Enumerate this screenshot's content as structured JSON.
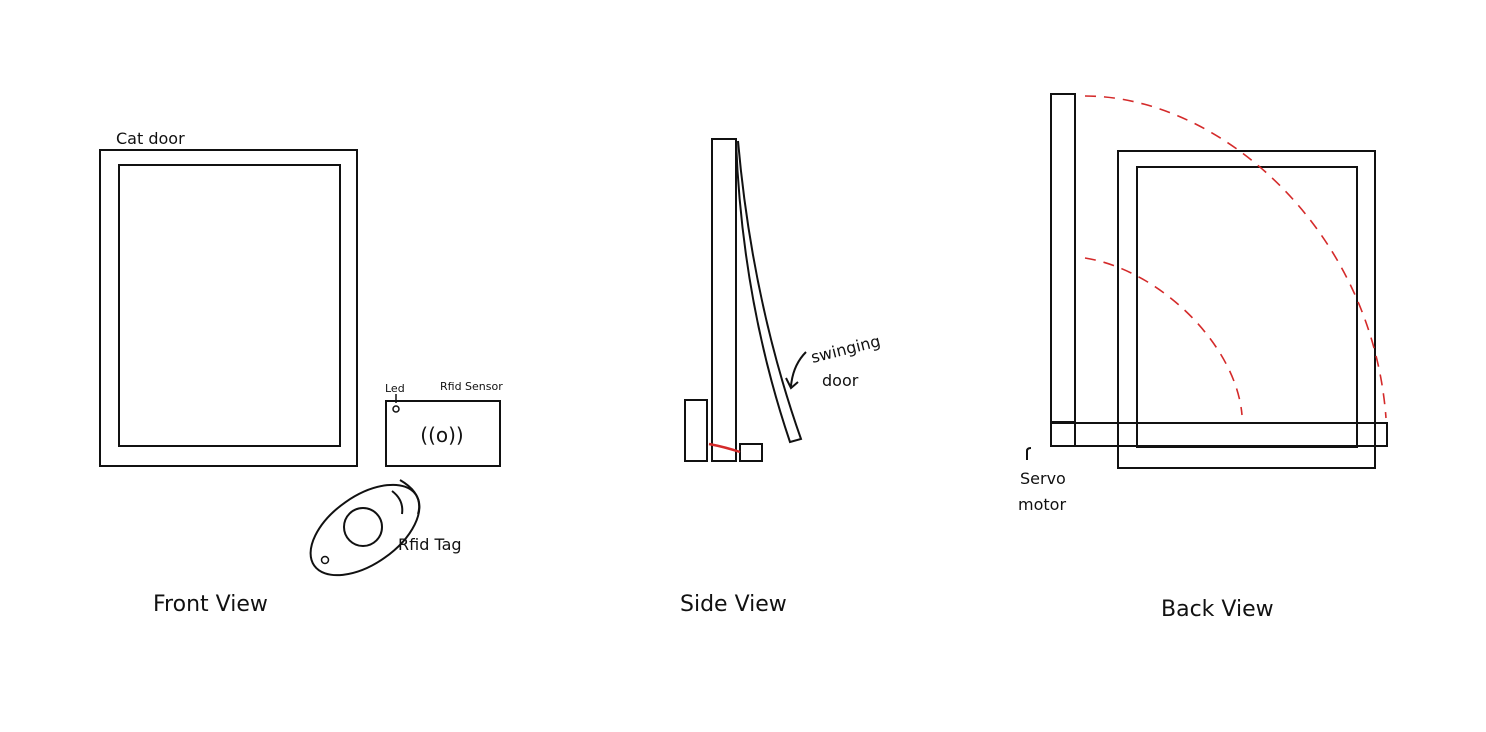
{
  "front_view": {
    "caption": "Front View",
    "cat_door_label": "Cat door",
    "led_label": "Led",
    "rfid_sensor_label": "Rfid Sensor",
    "sensor_symbol": "((o))",
    "rfid_tag_label": "Rfid Tag"
  },
  "side_view": {
    "caption": "Side View",
    "door_label_line1": "swinging",
    "door_label_line2": "door"
  },
  "back_view": {
    "caption": "Back View",
    "servo_label_line1": "Servo",
    "servo_label_line2": "motor"
  },
  "colors": {
    "ink": "#111111",
    "swing_path": "#d42a2a"
  }
}
